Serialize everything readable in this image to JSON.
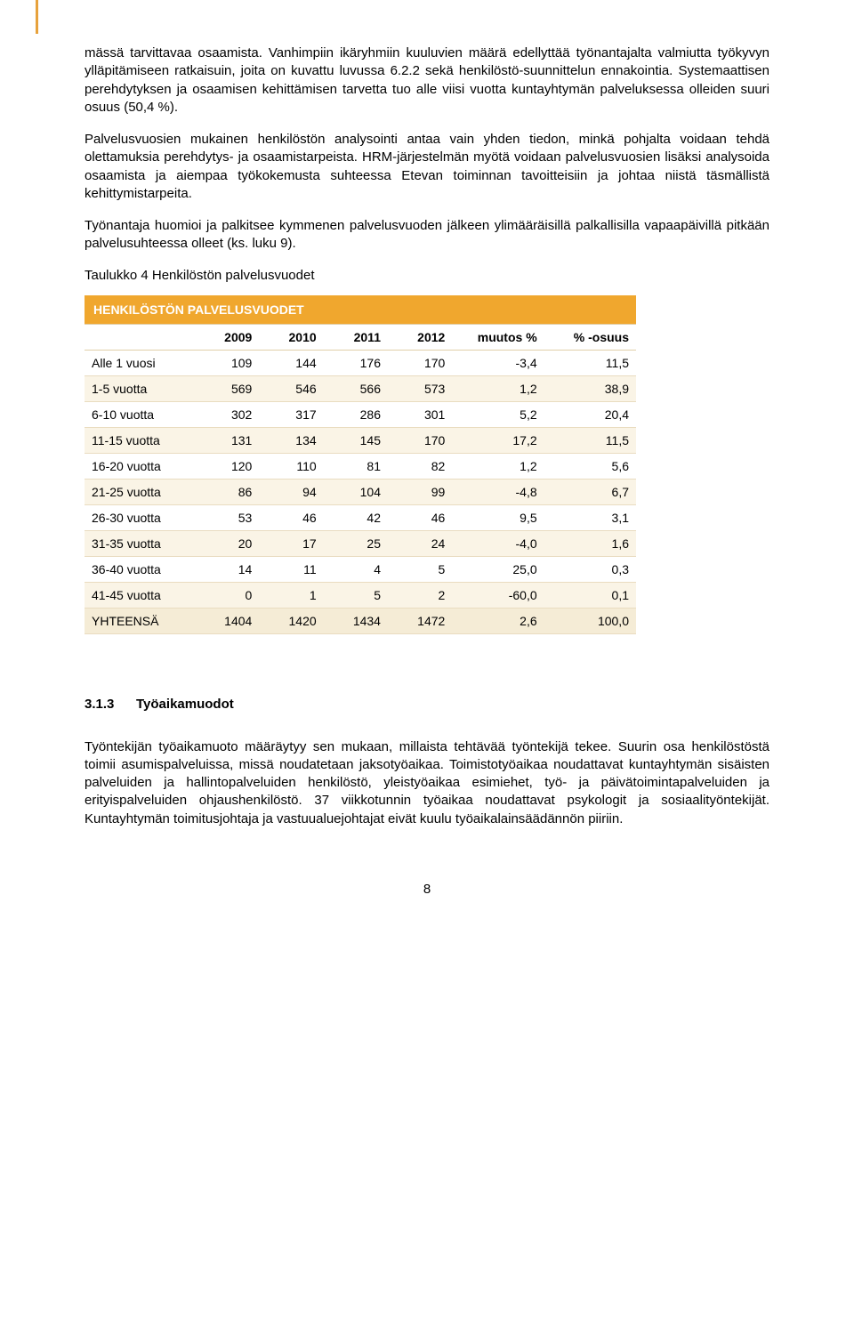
{
  "paragraphs": {
    "p1": "mässä tarvittavaa osaamista. Vanhimpiin ikäryhmiin kuuluvien määrä edellyttää työnantajalta valmiutta työkyvyn ylläpitämiseen ratkaisuin, joita on kuvattu luvussa 6.2.2 sekä henkilöstö-suunnittelun ennakointia. Systemaattisen perehdytyksen ja osaamisen kehittämisen tarvetta tuo alle viisi vuotta kuntayhtymän palveluksessa olleiden suuri osuus (50,4 %).",
    "p2": "Palvelusvuosien mukainen henkilöstön analysointi antaa vain yhden tiedon, minkä pohjalta voidaan tehdä olettamuksia perehdytys- ja osaamistarpeista. HRM-järjestelmän myötä voidaan palvelusvuosien lisäksi analysoida osaamista ja aiempaa työkokemusta suhteessa Etevan toiminnan tavoitteisiin ja johtaa niistä täsmällistä kehittymistarpeita.",
    "p3": "Työnantaja huomioi ja palkitsee kymmenen palvelusvuoden jälkeen ylimääräisillä palkallisilla vapaapäivillä pitkään palvelusuhteessa olleet (ks. luku 9).",
    "p4": "Työntekijän työaikamuoto määräytyy sen mukaan, millaista tehtävää työntekijä tekee. Suurin osa henkilöstöstä toimii asumispalveluissa, missä noudatetaan jaksotyöaikaa. Toimistotyöaikaa noudattavat kuntayhtymän sisäisten palveluiden ja hallintopalveluiden henkilöstö, yleistyöaikaa esimiehet, työ- ja päivätoimintapalveluiden ja erityispalveluiden ohjaushenkilöstö. 37 viikkotunnin työaikaa noudattavat psykologit ja sosiaalityöntekijät. Kuntayhtymän toimitusjohtaja ja vastuualuejohtajat eivät kuulu työaikalainsäädännön piiriin."
  },
  "table_caption": "Taulukko 4 Henkilöstön palvelusvuodet",
  "table": {
    "title": "HENKILÖSTÖN PALVELUSVUODET",
    "columns": [
      "",
      "2009",
      "2010",
      "2011",
      "2012",
      "muutos %",
      "% -osuus"
    ],
    "rows": [
      {
        "label": "Alle 1 vuosi",
        "v": [
          "109",
          "144",
          "176",
          "170",
          "-3,4",
          "11,5"
        ],
        "alt": false
      },
      {
        "label": "1-5 vuotta",
        "v": [
          "569",
          "546",
          "566",
          "573",
          "1,2",
          "38,9"
        ],
        "alt": true
      },
      {
        "label": "6-10 vuotta",
        "v": [
          "302",
          "317",
          "286",
          "301",
          "5,2",
          "20,4"
        ],
        "alt": false
      },
      {
        "label": "11-15 vuotta",
        "v": [
          "131",
          "134",
          "145",
          "170",
          "17,2",
          "11,5"
        ],
        "alt": true
      },
      {
        "label": "16-20 vuotta",
        "v": [
          "120",
          "110",
          "81",
          "82",
          "1,2",
          "5,6"
        ],
        "alt": false
      },
      {
        "label": "21-25 vuotta",
        "v": [
          "86",
          "94",
          "104",
          "99",
          "-4,8",
          "6,7"
        ],
        "alt": true
      },
      {
        "label": "26-30 vuotta",
        "v": [
          "53",
          "46",
          "42",
          "46",
          "9,5",
          "3,1"
        ],
        "alt": false
      },
      {
        "label": "31-35 vuotta",
        "v": [
          "20",
          "17",
          "25",
          "24",
          "-4,0",
          "1,6"
        ],
        "alt": true
      },
      {
        "label": "36-40 vuotta",
        "v": [
          "14",
          "11",
          "4",
          "5",
          "25,0",
          "0,3"
        ],
        "alt": false
      },
      {
        "label": "41-45 vuotta",
        "v": [
          "0",
          "1",
          "5",
          "2",
          "-60,0",
          "0,1"
        ],
        "alt": true
      },
      {
        "label": "YHTEENSÄ",
        "v": [
          "1404",
          "1420",
          "1434",
          "1472",
          "2,6",
          "100,0"
        ],
        "alt": false,
        "total": true
      }
    ],
    "header_bg": "#f0a72e",
    "header_color": "#ffffff",
    "alt_bg": "#faf4e6",
    "border_color": "#e9dcc0"
  },
  "section": {
    "number": "3.1.3",
    "title": "Työaikamuodot"
  },
  "page_number": "8"
}
